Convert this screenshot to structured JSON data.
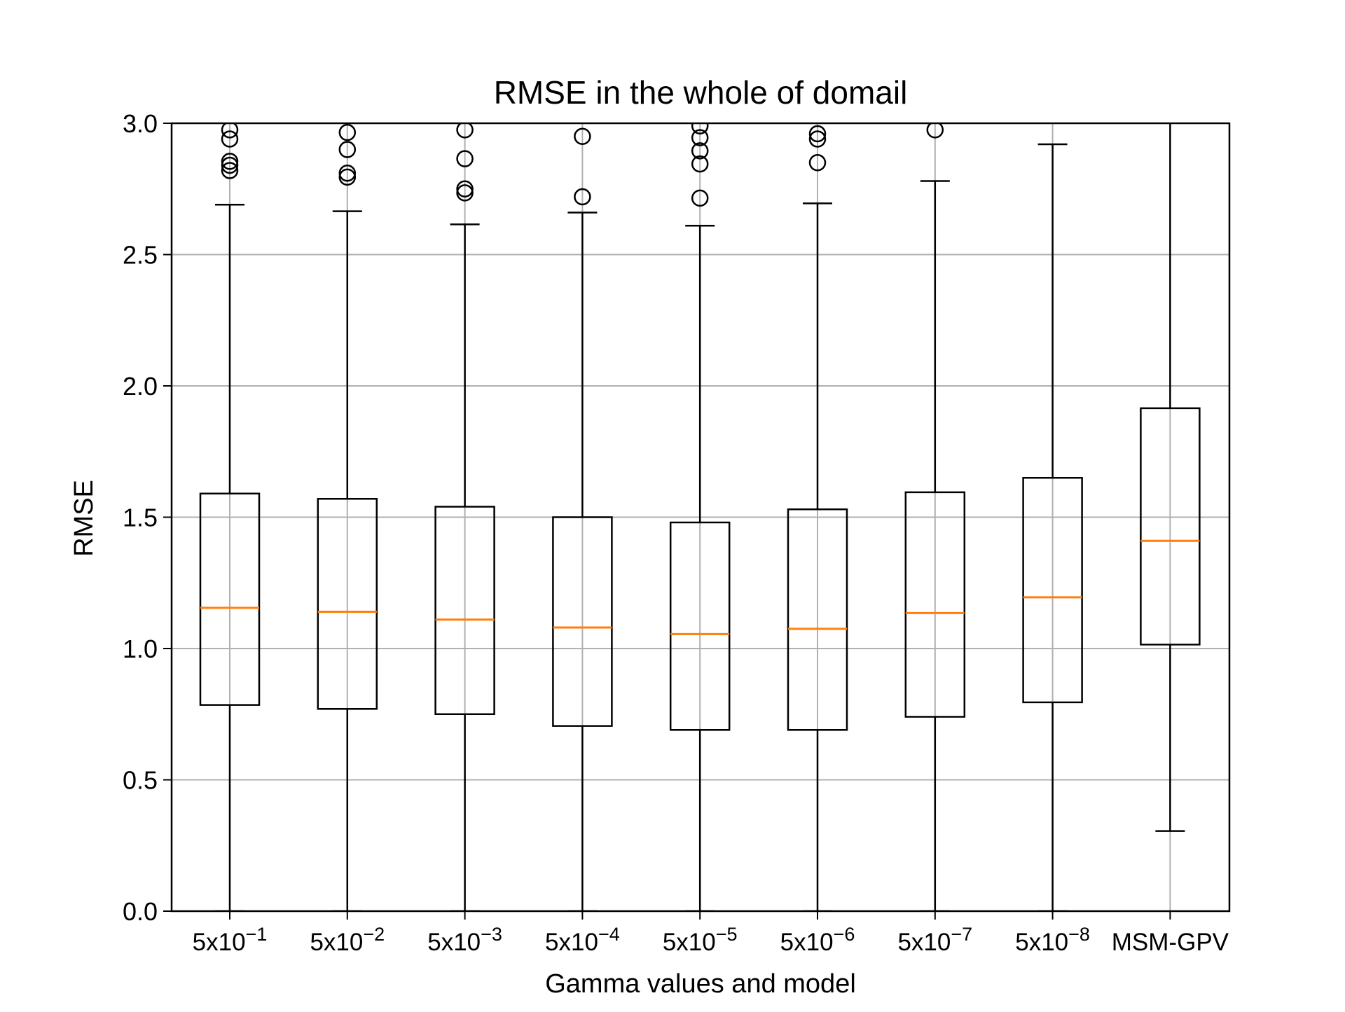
{
  "chart_data": {
    "type": "boxplot",
    "title": "RMSE in the whole of domail",
    "xlabel": "Gamma values and model",
    "ylabel": "RMSE",
    "ylim": [
      0,
      3
    ],
    "yticks": [
      "0.0",
      "0.5",
      "1.0",
      "1.5",
      "2.0",
      "2.5",
      "3.0"
    ],
    "grid": true,
    "categories": [
      {
        "base": "5x10",
        "exp": "−1"
      },
      {
        "base": "5x10",
        "exp": "−2"
      },
      {
        "base": "5x10",
        "exp": "−3"
      },
      {
        "base": "5x10",
        "exp": "−4"
      },
      {
        "base": "5x10",
        "exp": "−5"
      },
      {
        "base": "5x10",
        "exp": "−6"
      },
      {
        "base": "5x10",
        "exp": "−7"
      },
      {
        "base": "5x10",
        "exp": "−8"
      },
      {
        "base": "MSM-GPV",
        "exp": ""
      }
    ],
    "boxes": [
      {
        "whislo": 0.0,
        "q1": 0.785,
        "median": 1.155,
        "q3": 1.59,
        "whishi": 2.69,
        "fliers": [
          2.82,
          2.84,
          2.855,
          2.94,
          2.975
        ]
      },
      {
        "whislo": 0.0,
        "q1": 0.77,
        "median": 1.14,
        "q3": 1.57,
        "whishi": 2.665,
        "fliers": [
          2.795,
          2.81,
          2.9,
          2.965
        ]
      },
      {
        "whislo": 0.0,
        "q1": 0.75,
        "median": 1.11,
        "q3": 1.54,
        "whishi": 2.615,
        "fliers": [
          2.735,
          2.75,
          2.865,
          2.975
        ]
      },
      {
        "whislo": 0.0,
        "q1": 0.705,
        "median": 1.08,
        "q3": 1.5,
        "whishi": 2.66,
        "fliers": [
          2.72,
          2.95
        ]
      },
      {
        "whislo": 0.0,
        "q1": 0.69,
        "median": 1.055,
        "q3": 1.48,
        "whishi": 2.61,
        "fliers": [
          2.715,
          2.845,
          2.895,
          2.945,
          2.99
        ]
      },
      {
        "whislo": 0.0,
        "q1": 0.69,
        "median": 1.075,
        "q3": 1.53,
        "whishi": 2.695,
        "fliers": [
          2.85,
          2.94,
          2.96
        ]
      },
      {
        "whislo": 0.0,
        "q1": 0.74,
        "median": 1.135,
        "q3": 1.595,
        "whishi": 2.78,
        "fliers": [
          2.975
        ]
      },
      {
        "whislo": 0.0,
        "q1": 0.795,
        "median": 1.195,
        "q3": 1.65,
        "whishi": 2.92,
        "fliers": []
      },
      {
        "whislo": 0.305,
        "q1": 1.015,
        "median": 1.41,
        "q3": 1.915,
        "whishi": 3.05,
        "fliers": []
      }
    ],
    "colors": {
      "box": "#000000",
      "median": "#ff7f0e",
      "grid": "#b0b0b0"
    }
  }
}
